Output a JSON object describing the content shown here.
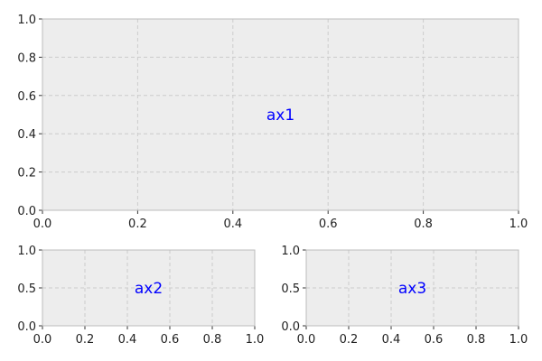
{
  "chart_data": [
    {
      "type": "line",
      "series": [],
      "annotation": "ax1",
      "xlim": [
        0,
        1
      ],
      "ylim": [
        0,
        1
      ],
      "xticks": [
        "0.0",
        "0.2",
        "0.4",
        "0.6",
        "0.8",
        "1.0"
      ],
      "yticks": [
        "0.0",
        "0.2",
        "0.4",
        "0.6",
        "0.8",
        "1.0"
      ],
      "grid": true
    },
    {
      "type": "line",
      "series": [],
      "annotation": "ax2",
      "xlim": [
        0,
        1
      ],
      "ylim": [
        0,
        1
      ],
      "xticks": [
        "0.0",
        "0.2",
        "0.4",
        "0.6",
        "0.8",
        "1.0"
      ],
      "yticks": [
        "0.0",
        "0.5",
        "1.0"
      ],
      "grid": true
    },
    {
      "type": "line",
      "series": [],
      "annotation": "ax3",
      "xlim": [
        0,
        1
      ],
      "ylim": [
        0,
        1
      ],
      "xticks": [
        "0.0",
        "0.2",
        "0.4",
        "0.6",
        "0.8",
        "1.0"
      ],
      "yticks": [
        "0.0",
        "0.5",
        "1.0"
      ],
      "grid": true
    }
  ],
  "colors": {
    "axes_bg": "#ededed",
    "annotation": "#0000ff",
    "grid": "#cccccc",
    "spine": "#bcbcbc"
  }
}
